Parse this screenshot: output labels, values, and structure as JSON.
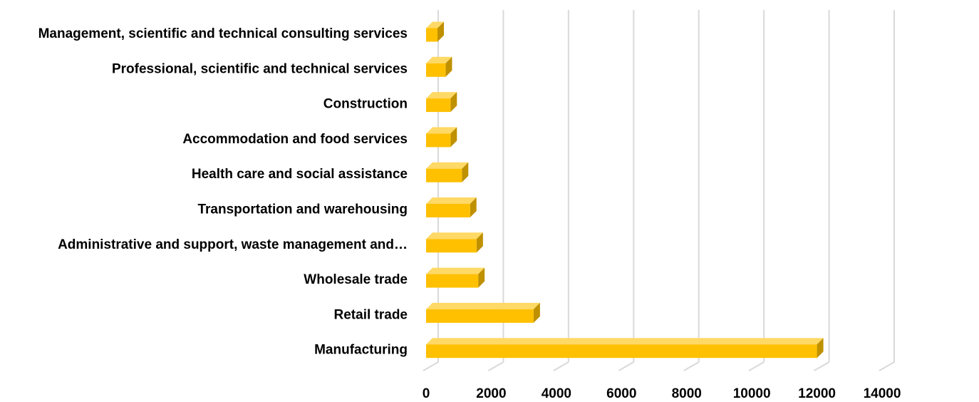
{
  "chart_data": {
    "type": "bar",
    "orientation": "horizontal",
    "style": "3d",
    "categories": [
      "Management, scientific and technical consulting services",
      "Professional, scientific and technical services",
      "Construction",
      "Accommodation and food services",
      "Health care and social assistance",
      "Transportation and warehousing",
      "Administrative and support, waste management and…",
      "Wholesale trade",
      "Retail trade",
      "Manufacturing"
    ],
    "values": [
      350,
      600,
      750,
      750,
      1100,
      1350,
      1550,
      1600,
      3300,
      12000
    ],
    "xlim": [
      0,
      14000
    ],
    "xticks": [
      "0",
      "2000",
      "4000",
      "6000",
      "8000",
      "10000",
      "12000",
      "14000"
    ],
    "title": "",
    "xlabel": "",
    "ylabel": "",
    "grid": true,
    "legend": "none",
    "colors": {
      "bar_front": "#ffc000",
      "bar_top": "#ffd966",
      "bar_side": "#bf9000",
      "gridline": "#d9d9d9"
    }
  }
}
